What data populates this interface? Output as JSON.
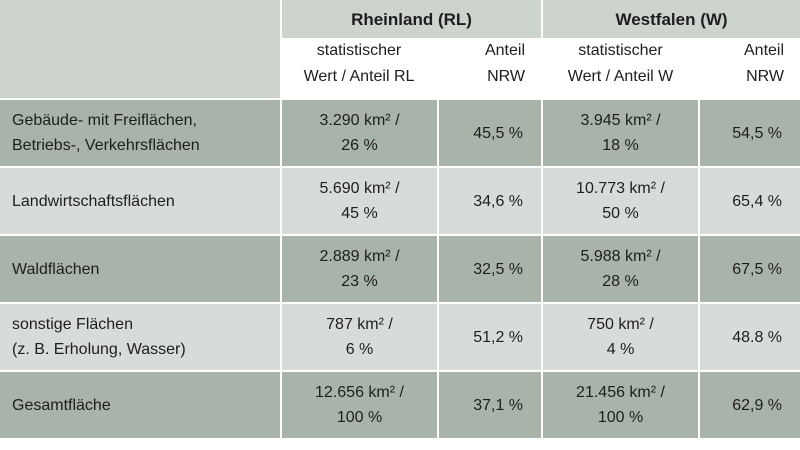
{
  "header": {
    "regions": [
      "Rheinland (RL)",
      "Westfalen (W)"
    ],
    "rl_col1": [
      "statistischer",
      "Wert / Anteil RL"
    ],
    "rl_col2": [
      "Anteil",
      "NRW"
    ],
    "w_col1": [
      "statistischer",
      "Wert / Anteil W"
    ],
    "w_col2": [
      "Anteil",
      "NRW"
    ]
  },
  "rows": [
    {
      "label": [
        "Gebäude- mit Freiflächen,",
        "Betriebs-, Verkehrsflächen"
      ],
      "rl_value": [
        "3.290 km² /",
        "26 %"
      ],
      "rl_share": "45,5 %",
      "w_value": [
        "3.945 km² /",
        "18 %"
      ],
      "w_share": "54,5 %"
    },
    {
      "label": [
        "Landwirtschaftsflächen"
      ],
      "rl_value": [
        "5.690 km² /",
        "45 %"
      ],
      "rl_share": "34,6 %",
      "w_value": [
        "10.773 km² /",
        "50 %"
      ],
      "w_share": "65,4 %"
    },
    {
      "label": [
        "Waldflächen"
      ],
      "rl_value": [
        "2.889 km² /",
        "23 %"
      ],
      "rl_share": "32,5 %",
      "w_value": [
        "5.988 km² /",
        "28 %"
      ],
      "w_share": "67,5 %"
    },
    {
      "label": [
        "sonstige Flächen",
        "(z. B. Erholung, Wasser)"
      ],
      "rl_value": [
        "787 km² /",
        "6 %"
      ],
      "rl_share": "51,2 %",
      "w_value": [
        "750 km² /",
        "4 %"
      ],
      "w_share": "48.8 %"
    },
    {
      "label": [
        "Gesamtfläche"
      ],
      "rl_value": [
        "12.656 km² /",
        "100 %"
      ],
      "rl_share": "37,1 %",
      "w_value": [
        "21.456 km² /",
        "100 %"
      ],
      "w_share": "62,9 %"
    }
  ],
  "colors": {
    "header_bg": "#cdd3cd",
    "dark_row_bg": "#a8b3a9",
    "light_row_bg": "#d8dcd8",
    "grid_line": "#ffffff"
  }
}
